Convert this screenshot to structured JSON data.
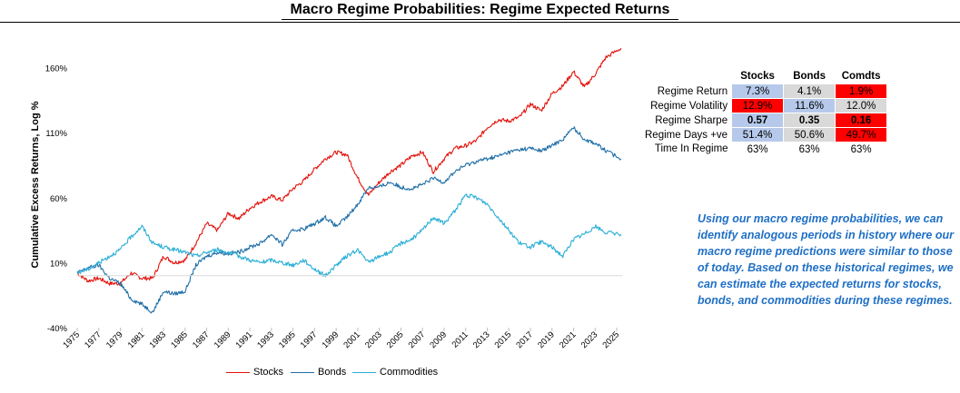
{
  "title": "Macro Regime Probabilities: Regime Expected Returns",
  "colors": {
    "stocks": "#e3120b",
    "bonds": "#1f6fa8",
    "commodities": "#2aaed6",
    "blue_cell": "#b6c9ea",
    "grey_cell": "#d9d9d9",
    "red_cell": "#ff0000"
  },
  "chart_data": {
    "type": "line",
    "title": "",
    "xlabel": "",
    "ylabel": "Cumulative Excess Returns, Log %",
    "xlim": [
      1975,
      2025.5
    ],
    "ylim": [
      -40,
      180
    ],
    "y_ticks": [
      "-40%",
      "10%",
      "60%",
      "110%",
      "160%"
    ],
    "y_tick_values": [
      -40,
      10,
      60,
      110,
      160
    ],
    "x_ticks": [
      "1975",
      "1977",
      "1979",
      "1981",
      "1983",
      "1985",
      "1987",
      "1989",
      "1991",
      "1993",
      "1995",
      "1997",
      "1999",
      "2001",
      "2003",
      "2005",
      "2007",
      "2009",
      "2011",
      "2013",
      "2015",
      "2017",
      "2019",
      "2021",
      "2023",
      "2025"
    ],
    "grid": false,
    "legend_position": "bottom",
    "series": [
      {
        "name": "Stocks",
        "color": "#e3120b",
        "x": [
          1975,
          1976,
          1977,
          1978,
          1979,
          1980,
          1981,
          1982,
          1983,
          1984,
          1985,
          1986,
          1987,
          1988,
          1989,
          1990,
          1991,
          1992,
          1993,
          1994,
          1995,
          1996,
          1997,
          1998,
          1999,
          2000,
          2001,
          2002,
          2003,
          2004,
          2005,
          2006,
          2007,
          2008,
          2009,
          2010,
          2011,
          2012,
          2013,
          2014,
          2015,
          2016,
          2017,
          2018,
          2019,
          2020,
          2021,
          2022,
          2023,
          2024,
          2025.4
        ],
        "y": [
          2,
          -4,
          -2,
          -6,
          -6,
          2,
          -2,
          -2,
          15,
          10,
          12,
          25,
          40,
          35,
          48,
          44,
          52,
          57,
          61,
          58,
          67,
          73,
          82,
          90,
          95,
          93,
          75,
          62,
          72,
          80,
          85,
          92,
          95,
          80,
          90,
          98,
          100,
          104,
          114,
          120,
          119,
          122,
          132,
          127,
          140,
          146,
          157,
          145,
          155,
          168,
          175
        ]
      },
      {
        "name": "Bonds",
        "color": "#1f6fa8",
        "x": [
          1975,
          1976,
          1977,
          1978,
          1979,
          1980,
          1981,
          1982,
          1983,
          1984,
          1985,
          1986,
          1987,
          1988,
          1989,
          1990,
          1991,
          1992,
          1993,
          1994,
          1995,
          1996,
          1997,
          1998,
          1999,
          2000,
          2001,
          2002,
          2003,
          2004,
          2005,
          2006,
          2007,
          2008,
          2009,
          2010,
          2011,
          2012,
          2013,
          2014,
          2015,
          2016,
          2017,
          2018,
          2019,
          2020,
          2021,
          2022,
          2023,
          2024,
          2025.4
        ],
        "y": [
          2,
          6,
          8,
          -2,
          -6,
          -18,
          -22,
          -28,
          -12,
          -14,
          -12,
          8,
          15,
          18,
          17,
          18,
          22,
          25,
          32,
          24,
          35,
          36,
          40,
          45,
          38,
          45,
          55,
          68,
          68,
          72,
          68,
          67,
          70,
          75,
          72,
          80,
          85,
          88,
          90,
          92,
          95,
          97,
          98,
          96,
          100,
          105,
          114,
          105,
          102,
          96,
          90
        ]
      },
      {
        "name": "Commodities",
        "color": "#2aaed6",
        "x": [
          1975,
          1976,
          1977,
          1978,
          1979,
          1980,
          1981,
          1982,
          1983,
          1984,
          1985,
          1986,
          1987,
          1988,
          1989,
          1990,
          1991,
          1992,
          1993,
          1994,
          1995,
          1996,
          1997,
          1998,
          1999,
          2000,
          2001,
          2002,
          2003,
          2004,
          2005,
          2006,
          2007,
          2008,
          2009,
          2010,
          2011,
          2012,
          2013,
          2014,
          2015,
          2016,
          2017,
          2018,
          2019,
          2020,
          2021,
          2022,
          2023,
          2024,
          2025.4
        ],
        "y": [
          2,
          5,
          10,
          15,
          20,
          30,
          38,
          25,
          22,
          20,
          18,
          15,
          18,
          20,
          18,
          15,
          12,
          10,
          12,
          10,
          8,
          12,
          5,
          0,
          8,
          15,
          20,
          10,
          15,
          18,
          25,
          28,
          35,
          45,
          40,
          50,
          62,
          60,
          55,
          45,
          35,
          25,
          22,
          26,
          22,
          15,
          28,
          32,
          38,
          33,
          32
        ]
      }
    ]
  },
  "table": {
    "columns": [
      "Stocks",
      "Bonds",
      "Comdts"
    ],
    "rows": [
      {
        "label": "Regime Return",
        "values": [
          "7.3%",
          "4.1%",
          "1.9%"
        ],
        "fills": [
          "blue",
          "grey",
          "red"
        ],
        "bold": false
      },
      {
        "label": "Regime Volatility",
        "values": [
          "12.9%",
          "11.6%",
          "12.0%"
        ],
        "fills": [
          "red",
          "blue",
          "grey"
        ],
        "bold": false
      },
      {
        "label": "Regime Sharpe",
        "values": [
          "0.57",
          "0.35",
          "0.16"
        ],
        "fills": [
          "blue",
          "grey",
          "red"
        ],
        "bold": true
      },
      {
        "label": "Regime Days +ve",
        "values": [
          "51.4%",
          "50.6%",
          "49.7%"
        ],
        "fills": [
          "blue",
          "grey",
          "red"
        ],
        "bold": false
      },
      {
        "label": "Time In Regime",
        "values": [
          "63%",
          "63%",
          "63%"
        ],
        "fills": [
          "none",
          "none",
          "none"
        ],
        "bold": false
      }
    ]
  },
  "note": "Using our macro regime probabilities, we can identify analogous periods in history where our macro regime predictions were similar to those of today. Based on these historical regimes, we can estimate the expected returns for stocks, bonds, and commodities during these regimes."
}
